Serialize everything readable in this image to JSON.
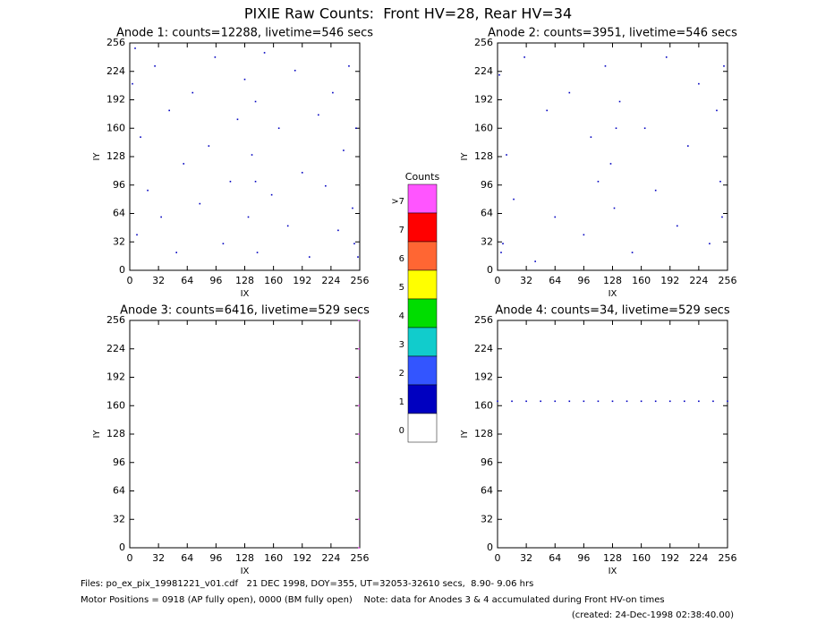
{
  "title": "PIXIE Raw Counts:  Front HV=28, Rear HV=34",
  "chart_data": [
    {
      "type": "scatter",
      "title": "Anode 1: counts=12288, livetime=546 secs",
      "xlabel": "IX",
      "ylabel": "IY",
      "xlim": [
        0,
        256
      ],
      "ylim": [
        0,
        256
      ],
      "xticks": [
        0,
        32,
        64,
        96,
        128,
        160,
        192,
        224,
        256
      ],
      "yticks": [
        0,
        32,
        64,
        96,
        128,
        160,
        192,
        224,
        256
      ],
      "series": [
        {
          "color": "#0000c0",
          "x": [
            3,
            8,
            12,
            20,
            28,
            35,
            44,
            52,
            60,
            70,
            78,
            88,
            95,
            104,
            112,
            120,
            128,
            132,
            136,
            140,
            142,
            150,
            158,
            166,
            176,
            184,
            192,
            200,
            210,
            218,
            226,
            232,
            238,
            244,
            248,
            252,
            254,
            6,
            140,
            250
          ],
          "y": [
            210,
            40,
            150,
            90,
            230,
            60,
            180,
            20,
            120,
            200,
            75,
            140,
            240,
            30,
            100,
            170,
            215,
            60,
            130,
            190,
            20,
            245,
            85,
            160,
            50,
            225,
            110,
            15,
            175,
            95,
            200,
            45,
            135,
            230,
            70,
            160,
            15,
            250,
            100,
            30
          ]
        }
      ]
    },
    {
      "type": "scatter",
      "title": "Anode 2: counts=3951, livetime=546 secs",
      "xlabel": "IX",
      "ylabel": "IY",
      "xlim": [
        0,
        256
      ],
      "ylim": [
        0,
        256
      ],
      "xticks": [
        0,
        32,
        64,
        96,
        128,
        160,
        192,
        224,
        256
      ],
      "yticks": [
        0,
        32,
        64,
        96,
        128,
        160,
        192,
        224,
        256
      ],
      "series": [
        {
          "color": "#0000c0",
          "x": [
            2,
            6,
            10,
            18,
            30,
            42,
            55,
            64,
            80,
            96,
            104,
            112,
            120,
            126,
            130,
            136,
            150,
            164,
            176,
            188,
            200,
            212,
            224,
            236,
            244,
            248,
            252,
            4,
            132,
            250
          ],
          "y": [
            220,
            30,
            130,
            80,
            240,
            10,
            180,
            60,
            200,
            40,
            150,
            100,
            230,
            120,
            70,
            190,
            20,
            160,
            90,
            240,
            50,
            140,
            210,
            30,
            180,
            100,
            230,
            20,
            160,
            60
          ]
        }
      ]
    },
    {
      "type": "scatter",
      "title": "Anode 3: counts=6416, livetime=529 secs",
      "xlabel": "IX",
      "ylabel": "IY",
      "xlim": [
        0,
        256
      ],
      "ylim": [
        0,
        256
      ],
      "xticks": [
        0,
        32,
        64,
        96,
        128,
        160,
        192,
        224,
        256
      ],
      "yticks": [
        0,
        32,
        64,
        96,
        128,
        160,
        192,
        224,
        256
      ],
      "series": [
        {
          "color": "#ff55ff",
          "x": [
            255,
            255,
            255,
            255,
            255,
            255,
            255,
            255,
            255
          ],
          "y": [
            0,
            32,
            64,
            96,
            128,
            160,
            192,
            224,
            256
          ]
        }
      ]
    },
    {
      "type": "scatter",
      "title": "Anode 4: counts=34, livetime=529 secs",
      "xlabel": "IX",
      "ylabel": "IY",
      "xlim": [
        0,
        256
      ],
      "ylim": [
        0,
        256
      ],
      "xticks": [
        0,
        32,
        64,
        96,
        128,
        160,
        192,
        224,
        256
      ],
      "yticks": [
        0,
        32,
        64,
        96,
        128,
        160,
        192,
        224,
        256
      ],
      "series": [
        {
          "color": "#0000c0",
          "x": [
            0,
            16,
            32,
            48,
            64,
            80,
            96,
            112,
            128,
            144,
            160,
            176,
            192,
            208,
            224,
            240,
            256
          ],
          "y": [
            165,
            165,
            165,
            165,
            165,
            165,
            165,
            165,
            165,
            165,
            165,
            165,
            165,
            165,
            165,
            165,
            165
          ]
        }
      ]
    }
  ],
  "colorbar": {
    "title": "Counts",
    "levels": [
      {
        "label": ">7",
        "color": "#ff55ff"
      },
      {
        "label": "7",
        "color": "#ff0000"
      },
      {
        "label": "6",
        "color": "#ff6633"
      },
      {
        "label": "5",
        "color": "#ffff00"
      },
      {
        "label": "4",
        "color": "#00dd00"
      },
      {
        "label": "3",
        "color": "#11cccc"
      },
      {
        "label": "2",
        "color": "#3355ff"
      },
      {
        "label": "1",
        "color": "#0000c0"
      },
      {
        "label": "0",
        "color": "#ffffff"
      }
    ]
  },
  "footer": [
    "Files: po_ex_pix_19981221_v01.cdf   21 DEC 1998, DOY=355, UT=32053-32610 secs,  8.90- 9.06 hrs",
    "Motor Positions = 0918 (AP fully open), 0000 (BM fully open)    Note: data for Anodes 3 & 4 accumulated during Front HV-on times",
    "(created: 24-Dec-1998 02:38:40.00)"
  ]
}
